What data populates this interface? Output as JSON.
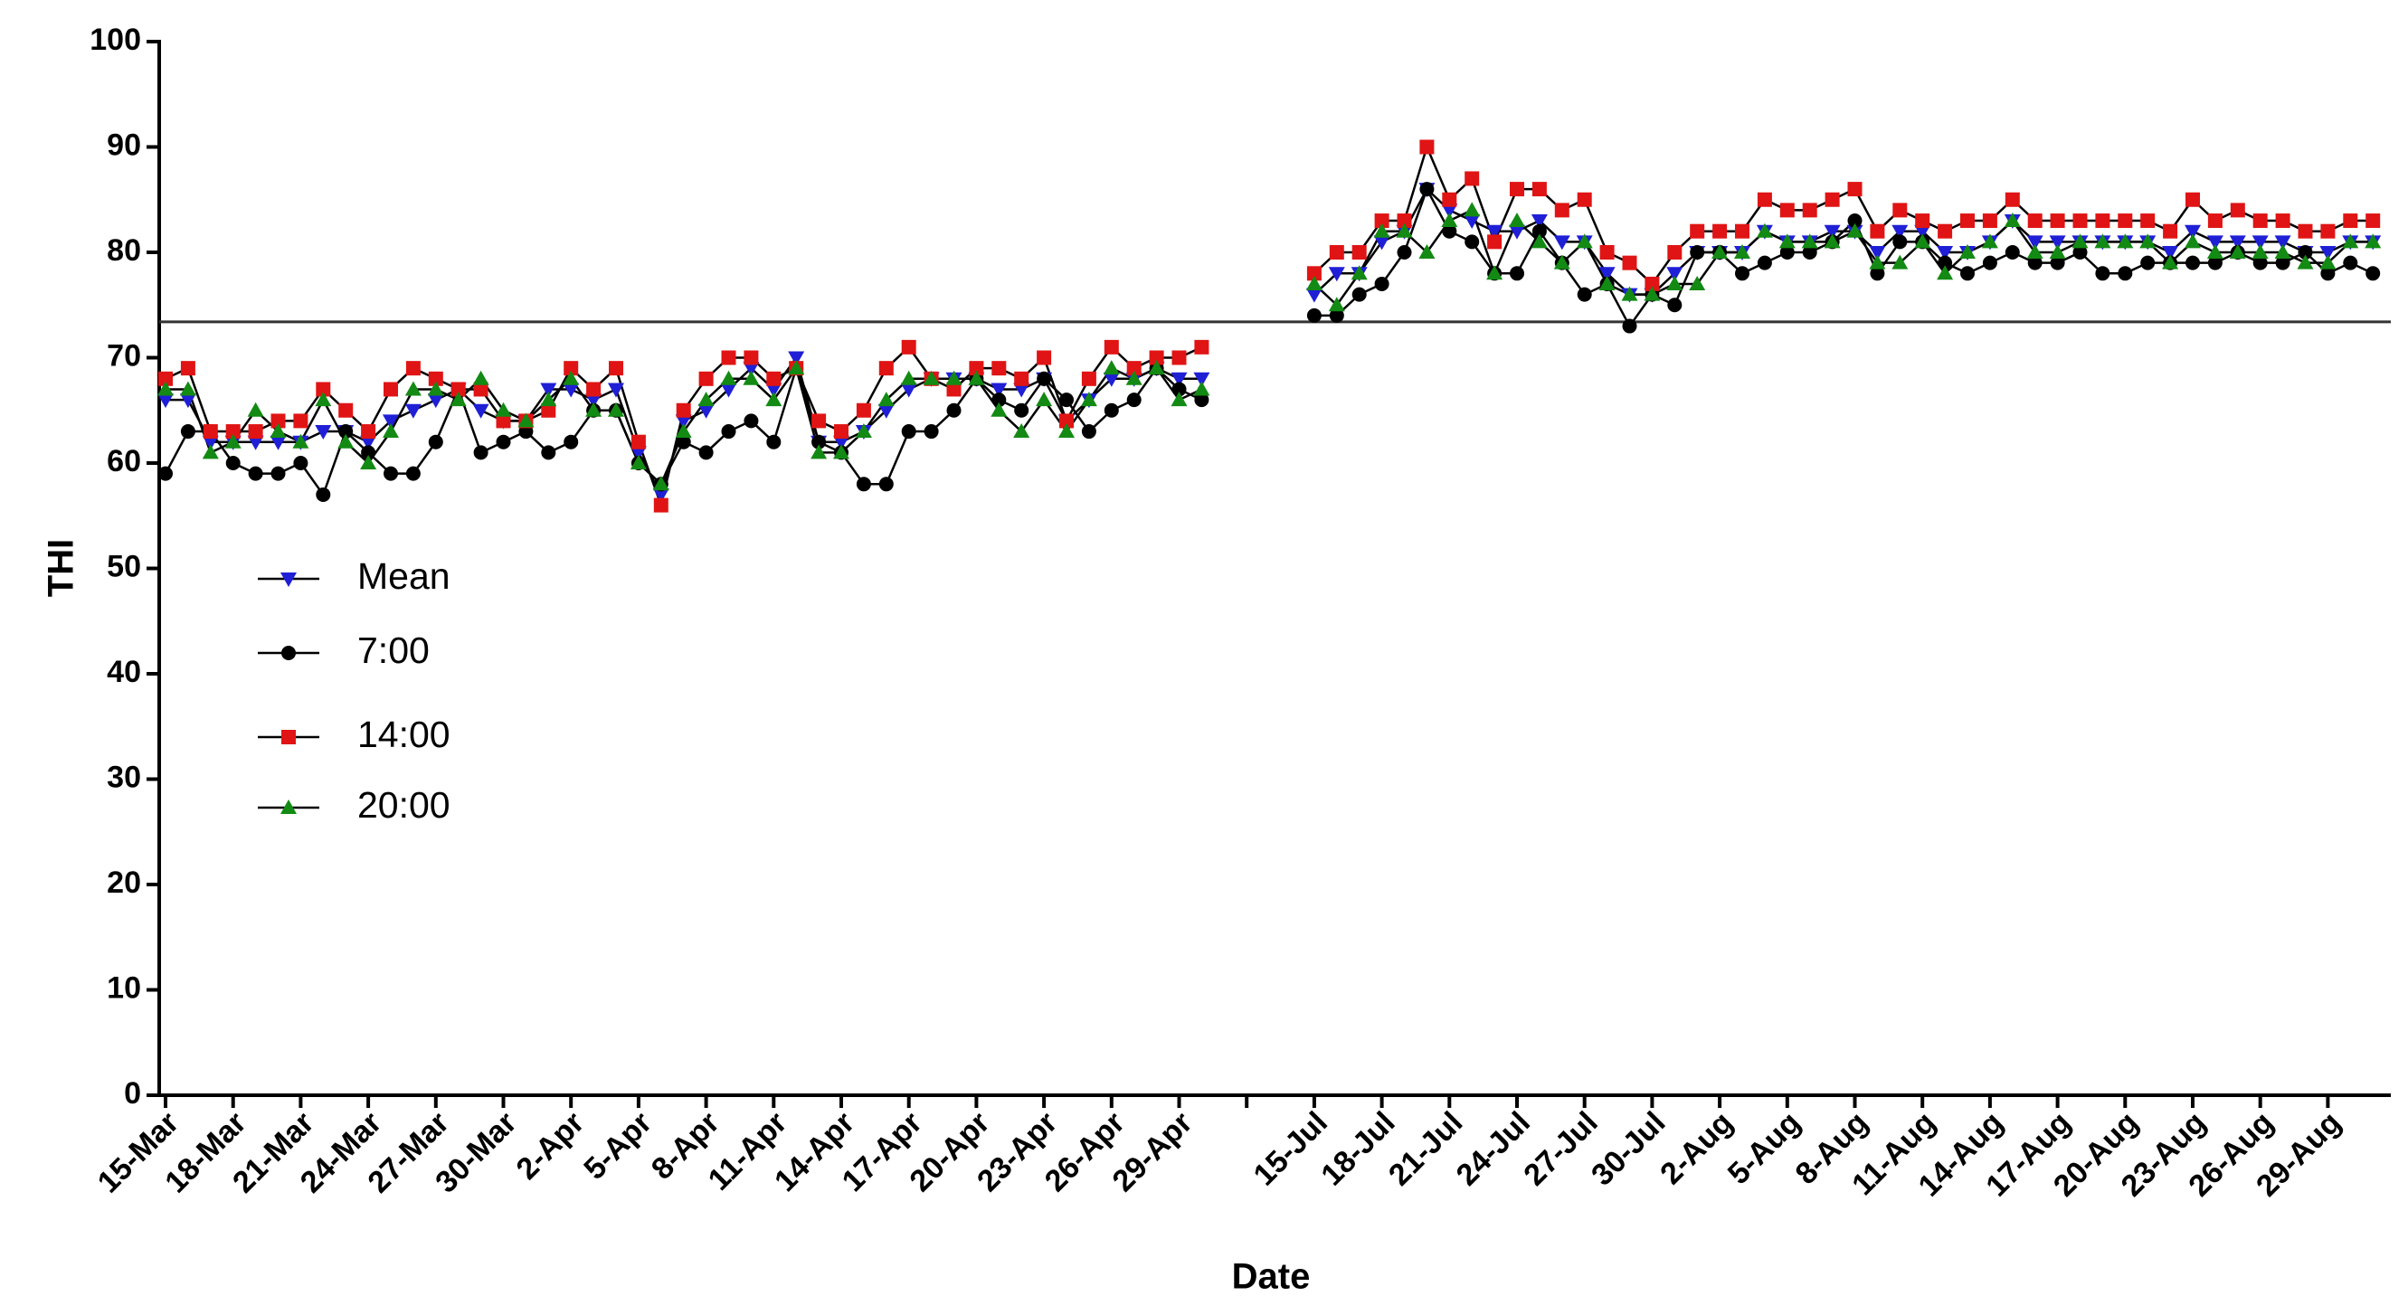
{
  "chart_data": {
    "type": "line",
    "x_label": "Date",
    "y_label": "THI",
    "categories": [
      "15-Mar",
      null,
      null,
      "18-Mar",
      null,
      null,
      "21-Mar",
      null,
      null,
      "24-Mar",
      null,
      null,
      "27-Mar",
      null,
      null,
      "30-Mar",
      null,
      null,
      "2-Apr",
      null,
      null,
      "5-Apr",
      null,
      null,
      "8-Apr",
      null,
      null,
      "11-Apr",
      null,
      null,
      "14-Apr",
      null,
      null,
      "17-Apr",
      null,
      null,
      "20-Apr",
      null,
      null,
      "23-Apr",
      null,
      null,
      "26-Apr",
      null,
      null,
      "29-Apr",
      null,
      null,
      null,
      null,
      null,
      "15-Jul",
      null,
      null,
      "18-Jul",
      null,
      null,
      "21-Jul",
      null,
      null,
      "24-Jul",
      null,
      null,
      "27-Jul",
      null,
      null,
      "30-Jul",
      null,
      null,
      "2-Aug",
      null,
      null,
      "5-Aug",
      null,
      null,
      "8-Aug",
      null,
      null,
      "11-Aug",
      null,
      null,
      "14-Aug",
      null,
      null,
      "17-Aug",
      null,
      null,
      "20-Aug",
      null,
      null,
      "23-Aug",
      null,
      null,
      "26-Aug",
      null,
      null,
      "29-Aug",
      null,
      null
    ],
    "series": [
      {
        "name": "Mean",
        "color": "#1f1fd6",
        "marker": "triangle-down",
        "values": [
          66,
          66,
          62,
          62,
          62,
          62,
          62,
          63,
          63,
          62,
          64,
          65,
          66,
          67,
          65,
          64,
          64,
          67,
          67,
          66,
          67,
          61,
          57,
          64,
          65,
          67,
          69,
          67,
          70,
          62,
          62,
          63,
          65,
          67,
          68,
          68,
          68,
          67,
          67,
          68,
          64,
          66,
          68,
          68,
          69,
          68,
          68,
          null,
          null,
          null,
          null,
          76,
          78,
          78,
          81,
          82,
          86,
          84,
          83,
          82,
          82,
          83,
          81,
          81,
          78,
          76,
          76,
          78,
          80,
          80,
          80,
          82,
          81,
          81,
          82,
          82,
          80,
          82,
          82,
          80,
          80,
          81,
          83,
          81,
          81,
          81,
          81,
          81,
          81,
          80,
          82,
          81,
          81,
          81,
          81,
          80,
          80,
          81,
          81
        ]
      },
      {
        "name": "7:00",
        "color": "#000000",
        "marker": "circle",
        "values": [
          59,
          63,
          63,
          60,
          59,
          59,
          60,
          57,
          63,
          61,
          59,
          59,
          62,
          67,
          61,
          62,
          63,
          61,
          62,
          65,
          65,
          60,
          58,
          62,
          61,
          63,
          64,
          62,
          69,
          62,
          61,
          58,
          58,
          63,
          63,
          65,
          68,
          66,
          65,
          68,
          66,
          63,
          65,
          66,
          69,
          67,
          66,
          null,
          null,
          null,
          null,
          74,
          74,
          76,
          77,
          80,
          86,
          82,
          81,
          78,
          78,
          82,
          79,
          76,
          77,
          73,
          76,
          75,
          80,
          80,
          78,
          79,
          80,
          80,
          81,
          83,
          78,
          81,
          81,
          79,
          78,
          79,
          80,
          79,
          79,
          80,
          78,
          78,
          79,
          79,
          79,
          79,
          80,
          79,
          79,
          80,
          78,
          79,
          78
        ]
      },
      {
        "name": "14:00",
        "color": "#e01414",
        "marker": "square",
        "values": [
          68,
          69,
          63,
          63,
          63,
          64,
          64,
          67,
          65,
          63,
          67,
          69,
          68,
          67,
          67,
          64,
          64,
          65,
          69,
          67,
          69,
          62,
          56,
          65,
          68,
          70,
          70,
          68,
          69,
          64,
          63,
          65,
          69,
          71,
          68,
          67,
          69,
          69,
          68,
          70,
          64,
          68,
          71,
          69,
          70,
          70,
          71,
          null,
          null,
          null,
          null,
          78,
          80,
          80,
          83,
          83,
          90,
          85,
          87,
          81,
          86,
          86,
          84,
          85,
          80,
          79,
          77,
          80,
          82,
          82,
          82,
          85,
          84,
          84,
          85,
          86,
          82,
          84,
          83,
          82,
          83,
          83,
          85,
          83,
          83,
          83,
          83,
          83,
          83,
          82,
          85,
          83,
          84,
          83,
          83,
          82,
          82,
          83,
          83
        ]
      },
      {
        "name": "20:00",
        "color": "#138a13",
        "marker": "triangle-up",
        "values": [
          67,
          67,
          61,
          62,
          65,
          63,
          62,
          66,
          62,
          60,
          63,
          67,
          67,
          66,
          68,
          65,
          64,
          66,
          68,
          65,
          65,
          60,
          58,
          63,
          66,
          68,
          68,
          66,
          69,
          61,
          61,
          63,
          66,
          68,
          68,
          68,
          68,
          65,
          63,
          66,
          63,
          66,
          69,
          68,
          69,
          66,
          67,
          null,
          null,
          null,
          null,
          77,
          75,
          78,
          82,
          82,
          80,
          83,
          84,
          78,
          83,
          81,
          79,
          81,
          77,
          76,
          76,
          77,
          77,
          80,
          80,
          82,
          81,
          81,
          81,
          82,
          79,
          79,
          81,
          78,
          80,
          81,
          83,
          80,
          80,
          81,
          81,
          81,
          81,
          79,
          81,
          80,
          80,
          80,
          80,
          79,
          79,
          81,
          81
        ]
      }
    ],
    "reference_line": 73.4,
    "ylim": [
      0,
      100
    ],
    "yticks": [
      0,
      10,
      20,
      30,
      40,
      50,
      60,
      70,
      80,
      90,
      100
    ],
    "grid": false,
    "legend_position": "left"
  }
}
